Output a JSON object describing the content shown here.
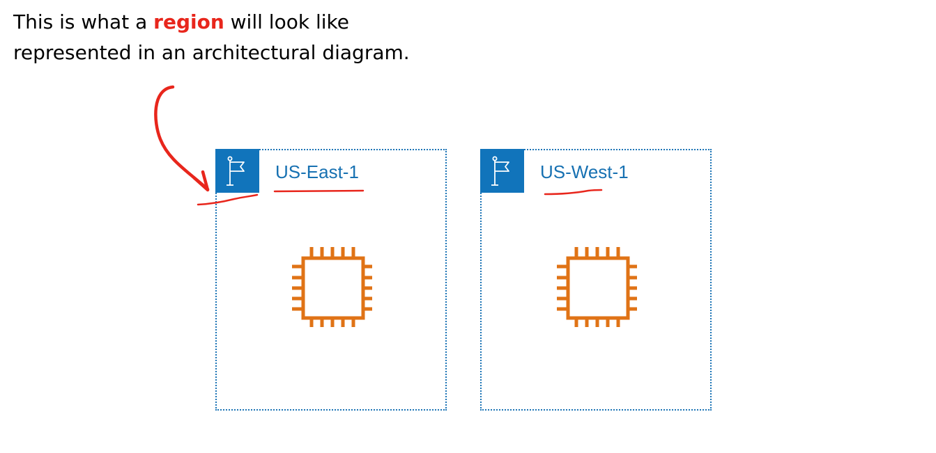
{
  "caption": {
    "prefix": "This is what a ",
    "highlight": "region",
    "suffix": " will look like",
    "line2": "represented in an architectural diagram."
  },
  "regions": [
    {
      "label": "US-East-1",
      "icon": "flag-icon",
      "resource_icon": "chip-icon"
    },
    {
      "label": "US-West-1",
      "icon": "flag-icon",
      "resource_icon": "chip-icon"
    }
  ],
  "colors": {
    "region_border": "#1a73b5",
    "flag_background": "#1174bb",
    "region_label": "#1771b2",
    "chip": "#e07316",
    "annotation": "#e8261c"
  }
}
